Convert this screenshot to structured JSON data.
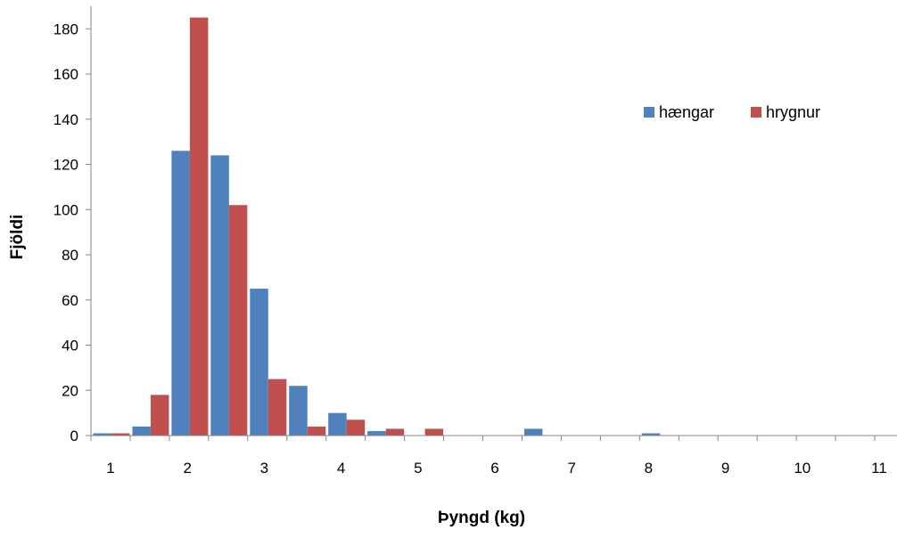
{
  "chart_data": {
    "type": "bar",
    "xlabel": "Þyngd (kg)",
    "ylabel": "Fjöldi",
    "ylim": [
      0,
      190
    ],
    "y_ticks": [
      0,
      20,
      40,
      60,
      80,
      100,
      120,
      140,
      160,
      180
    ],
    "x_tick_labels": [
      "1",
      "2",
      "3",
      "4",
      "5",
      "6",
      "7",
      "8",
      "9",
      "10",
      "11"
    ],
    "bin_width_kg": 0.5,
    "bins": [
      1,
      1.5,
      2,
      2.5,
      3,
      3.5,
      4,
      4.5,
      5,
      5.5,
      6,
      6.5,
      7,
      7.5,
      8,
      8.5,
      9,
      9.5,
      10,
      10.5,
      11
    ],
    "series": [
      {
        "name": "hængar",
        "color": "#4F81BD",
        "values": [
          1,
          4,
          126,
          124,
          65,
          22,
          10,
          2,
          0,
          0,
          0,
          3,
          0,
          0,
          1,
          0,
          0,
          0,
          0,
          0,
          0
        ]
      },
      {
        "name": "hrygnur",
        "color": "#C0504D",
        "values": [
          1,
          18,
          185,
          102,
          25,
          4,
          7,
          3,
          3,
          0,
          0,
          0,
          0,
          0,
          0,
          0,
          0,
          0,
          0,
          0,
          0
        ]
      }
    ],
    "legend_position": "top-right",
    "grid": false
  }
}
